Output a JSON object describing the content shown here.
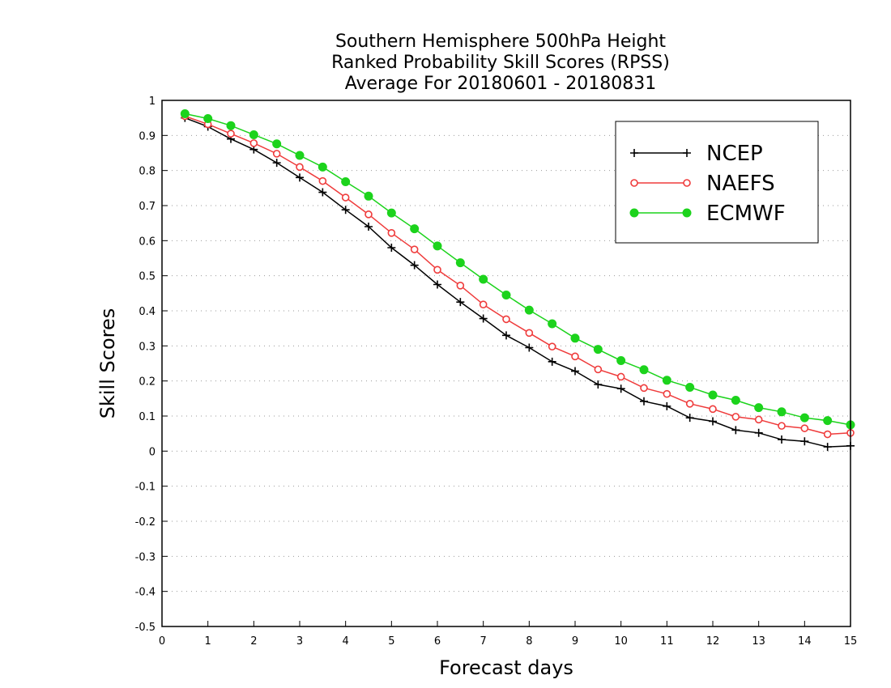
{
  "chart_data": {
    "type": "line",
    "title_lines": [
      "Southern Hemisphere 500hPa Height",
      "Ranked Probability Skill Scores (RPSS)",
      "Average For 20180601 - 20180831"
    ],
    "xlabel": "Forecast days",
    "ylabel": "Skill Scores",
    "xlim": [
      0,
      15
    ],
    "ylim": [
      -0.5,
      1
    ],
    "x_ticks": [
      0,
      1,
      2,
      3,
      4,
      5,
      6,
      7,
      8,
      9,
      10,
      11,
      12,
      13,
      14,
      15
    ],
    "y_ticks": [
      -0.5,
      -0.4,
      -0.3,
      -0.2,
      -0.1,
      0,
      0.1,
      0.2,
      0.3,
      0.4,
      0.5,
      0.6,
      0.7,
      0.8,
      0.9,
      1
    ],
    "x_tick_labels": [
      "0",
      "1",
      "2",
      "3",
      "4",
      "5",
      "6",
      "7",
      "8",
      "9",
      "10",
      "11",
      "12",
      "13",
      "14",
      "15"
    ],
    "y_tick_labels": [
      "-0.5",
      "-0.4",
      "-0.3",
      "-0.2",
      "-0.1",
      "0",
      "0.1",
      "0.2",
      "0.3",
      "0.4",
      "0.5",
      "0.6",
      "0.7",
      "0.8",
      "0.9",
      "1"
    ],
    "grid": "horizontal dotted",
    "legend_position": "top-right",
    "x": [
      0.5,
      1,
      1.5,
      2,
      2.5,
      3,
      3.5,
      4,
      4.5,
      5,
      5.5,
      6,
      6.5,
      7,
      7.5,
      8,
      8.5,
      9,
      9.5,
      10,
      10.5,
      11,
      11.5,
      12,
      12.5,
      13,
      13.5,
      14,
      14.5,
      15
    ],
    "series": [
      {
        "name": "NCEP",
        "color": "#000000",
        "marker": "plus",
        "values": [
          0.95,
          0.925,
          0.89,
          0.86,
          0.822,
          0.78,
          0.738,
          0.688,
          0.64,
          0.58,
          0.53,
          0.475,
          0.425,
          0.378,
          0.33,
          0.295,
          0.255,
          0.228,
          0.19,
          0.178,
          0.142,
          0.128,
          0.095,
          0.085,
          0.06,
          0.052,
          0.033,
          0.028,
          0.012,
          0.015
        ]
      },
      {
        "name": "NAEFS",
        "color": "#ef3b3b",
        "marker": "open-circle",
        "values": [
          0.955,
          0.932,
          0.905,
          0.878,
          0.848,
          0.81,
          0.77,
          0.723,
          0.675,
          0.622,
          0.575,
          0.517,
          0.472,
          0.418,
          0.376,
          0.337,
          0.298,
          0.27,
          0.233,
          0.212,
          0.18,
          0.163,
          0.135,
          0.12,
          0.098,
          0.09,
          0.072,
          0.065,
          0.048,
          0.052
        ]
      },
      {
        "name": "ECMWF",
        "color": "#1cd31c",
        "marker": "filled-circle",
        "values": [
          0.962,
          0.948,
          0.928,
          0.902,
          0.876,
          0.843,
          0.81,
          0.768,
          0.727,
          0.679,
          0.634,
          0.585,
          0.537,
          0.49,
          0.445,
          0.402,
          0.363,
          0.322,
          0.29,
          0.258,
          0.232,
          0.202,
          0.182,
          0.16,
          0.145,
          0.124,
          0.112,
          0.095,
          0.087,
          0.075
        ]
      }
    ]
  }
}
